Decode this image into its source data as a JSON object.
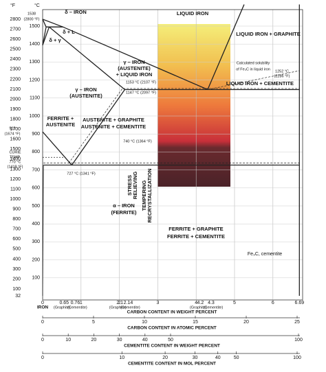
{
  "units": {
    "fahrenheit": "°F",
    "celsius": "°C"
  },
  "fahrenheit_ticks": [
    "2800",
    "2700",
    "2600",
    "2500",
    "2400",
    "2300",
    "2200",
    "2100",
    "2000",
    "1900",
    "1800",
    "1700",
    "1600",
    "1500",
    "1400",
    "1300",
    "1200",
    "1100",
    "1000",
    "900",
    "800",
    "700",
    "600",
    "500",
    "400",
    "300",
    "200",
    "100",
    "32"
  ],
  "celsius_ticks": [
    "1500",
    "1400",
    "1300",
    "1200",
    "1100",
    "1000",
    "900",
    "800",
    "700",
    "600",
    "500",
    "400",
    "300",
    "200",
    "100"
  ],
  "left_notes": [
    "1538",
    "(2800 °F)",
    "912",
    "(1674 °F)",
    "CURIE",
    "TEMP.",
    "770 °C",
    "(1418 °F)",
    "IRON"
  ],
  "regions": [
    "LIQUID IRON",
    "LIQUID IRON + GRAPHITE",
    "δ – IRON",
    "δ + L",
    "δ + γ",
    "γ – IRON",
    "(AUSTENITE)",
    "+ LIQUID IRON",
    "γ – IRON",
    "(AUSTENITE)",
    "LIQUID IRON + CEMENTITE",
    "FERRITE +",
    "AUSTENITE",
    "AUSTENITE + GRAPHITE",
    "AUSTENITE + CEMENTITE",
    "α – IRON",
    "(FERRITE)",
    "FERRITE + GRAPHITE",
    "FERRITE + CEMENTITE",
    "Fe₃C, cementite"
  ],
  "vertical_labels": [
    "STRESS",
    "RELIEVING",
    "TEMPERING",
    "RECRYSTALLIZATION"
  ],
  "annotations": [
    "Calculated solubility",
    "of Fe₃C in liquid iron",
    "1252 °C",
    "(2286 °F)",
    "1153 °C (2107 °F)",
    "1147 °C (2097 °F)",
    "740 °C (1364 °F)",
    "727 °C (1341 °F)"
  ],
  "carbon_weight": {
    "ticks": [
      "0",
      "0.65",
      "0.76",
      "1",
      "2",
      "2.1",
      "2.14",
      "3",
      "4",
      "4.2",
      "4.3",
      "5",
      "6",
      "6.69"
    ],
    "notes": [
      "(Graphite)",
      "(Cementite)",
      "(Graphite)",
      "(Cementite)",
      "(Graphite)",
      "(Cementite)"
    ],
    "title": "CARBON CONTENT IN WEIGHT PERCENT"
  },
  "carbon_atomic": {
    "ticks": [
      "0",
      "5",
      "10",
      "15",
      "20",
      "25"
    ],
    "title": "CARBON CONTENT IN ATOMIC PERCENT"
  },
  "cementite_weight": {
    "ticks": [
      "0",
      "10",
      "20",
      "30",
      "40",
      "50",
      "100"
    ],
    "title": "CEMENTITE CONTENT IN WEIGHT PERCENT"
  },
  "cementite_mol": {
    "ticks": [
      "0",
      "10",
      "20",
      "30",
      "40",
      "50",
      "100"
    ],
    "title": "CEMENTITE CONTENT IN MOL PERCENT"
  }
}
